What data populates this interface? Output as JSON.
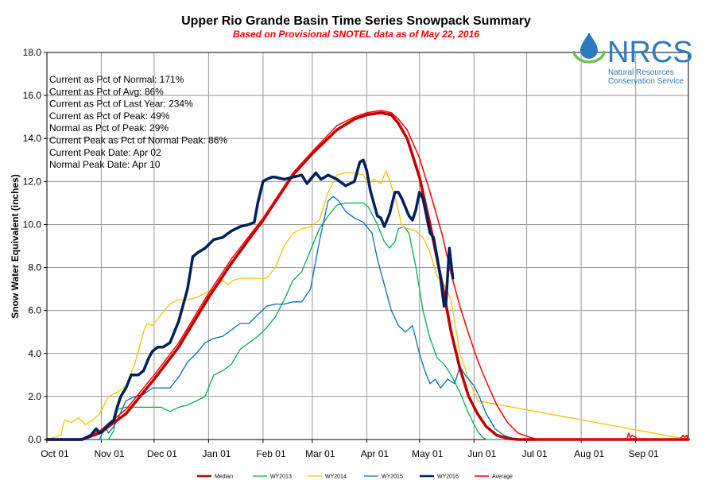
{
  "chart_data": {
    "type": "line",
    "title": "Upper Rio Grande Basin Time Series Snowpack Summary",
    "subtitle": "Based on Provisional SNOTEL data as of May 22, 2016",
    "xlabel": "",
    "ylabel": "Snow Water Equivalent (inches)",
    "ylim": [
      0,
      18
    ],
    "xlim": [
      0,
      365
    ],
    "grid": true,
    "legend_position": "bottom",
    "x_ticks": [
      {
        "label": "Oct 01",
        "day": 0
      },
      {
        "label": "Nov 01",
        "day": 31
      },
      {
        "label": "Dec 01",
        "day": 61
      },
      {
        "label": "Jan 01",
        "day": 92
      },
      {
        "label": "Feb 01",
        "day": 123
      },
      {
        "label": "Mar 01",
        "day": 151
      },
      {
        "label": "Apr 01",
        "day": 182
      },
      {
        "label": "May 01",
        "day": 212
      },
      {
        "label": "Jun 01",
        "day": 243
      },
      {
        "label": "Jul 01",
        "day": 273
      },
      {
        "label": "Aug 01",
        "day": 304
      },
      {
        "label": "Sep 01",
        "day": 335
      }
    ],
    "y_ticks": [
      "0.0",
      "2.0",
      "4.0",
      "6.0",
      "8.0",
      "10.0",
      "12.0",
      "14.0",
      "16.0",
      "18.0"
    ],
    "y_tick_values": [
      0,
      2,
      4,
      6,
      8,
      10,
      12,
      14,
      16,
      18
    ],
    "stats": [
      "Current  as Pct of Normal: 171%",
      "Current  as Pct of Avg: 86%",
      "Current  as Pct of Last Year: 234%",
      "Current  as Pct of Peak: 49%",
      "Normal as Pct of Peak: 29%",
      "Current  Peak as Pct of Normal  Peak: 86%",
      "Current  Peak Date: Apr 02",
      "Normal Peak Date: Apr 10"
    ],
    "series": [
      {
        "name": "Median",
        "color": "#c00000",
        "width": 3.5,
        "x": [
          0,
          20,
          30,
          45,
          61,
          75,
          92,
          105,
          123,
          140,
          151,
          165,
          175,
          182,
          190,
          196,
          200,
          205,
          212,
          218,
          225,
          230,
          235,
          240,
          245,
          250,
          256,
          262,
          268,
          275,
          365
        ],
        "y": [
          0,
          0,
          0.3,
          1.2,
          2.8,
          4.3,
          6.6,
          8.2,
          10.2,
          12.3,
          13.3,
          14.4,
          14.9,
          15.1,
          15.2,
          15.1,
          14.7,
          14.0,
          12.2,
          10.0,
          7.2,
          5.0,
          3.3,
          2.0,
          1.2,
          0.6,
          0.2,
          0.05,
          0,
          0,
          0
        ]
      },
      {
        "name": "WY2013",
        "color": "#00b050",
        "width": 1.3,
        "x": [
          0,
          35,
          38,
          40,
          45,
          50,
          55,
          65,
          70,
          75,
          80,
          90,
          95,
          100,
          105,
          110,
          115,
          120,
          125,
          130,
          135,
          140,
          145,
          150,
          155,
          160,
          165,
          170,
          175,
          180,
          183,
          188,
          192,
          195,
          198,
          200,
          203,
          206,
          210,
          214,
          218,
          222,
          226,
          230,
          235,
          240,
          245,
          248,
          250,
          365
        ],
        "y": [
          0,
          0,
          0.4,
          1.4,
          1.5,
          1.5,
          1.5,
          1.5,
          1.3,
          1.5,
          1.6,
          2.0,
          3.0,
          3.2,
          3.5,
          4.2,
          4.5,
          4.8,
          5.2,
          5.7,
          6.5,
          7.4,
          7.8,
          8.8,
          9.8,
          10.4,
          10.9,
          11.0,
          11.0,
          11.0,
          10.8,
          10.0,
          9.2,
          8.9,
          9.2,
          9.8,
          9.9,
          9.6,
          8.0,
          6.0,
          4.7,
          3.8,
          3.5,
          3.0,
          2.2,
          1.2,
          0.4,
          0.1,
          0,
          0
        ]
      },
      {
        "name": "WY2014",
        "color": "#ffc000",
        "width": 1.3,
        "x": [
          0,
          8,
          10,
          14,
          18,
          22,
          26,
          30,
          35,
          40,
          45,
          50,
          55,
          57,
          60,
          63,
          66,
          70,
          75,
          80,
          85,
          90,
          95,
          100,
          103,
          106,
          110,
          115,
          120,
          125,
          130,
          135,
          140,
          145,
          150,
          155,
          160,
          165,
          170,
          175,
          180,
          183,
          186,
          190,
          193,
          196,
          199,
          202,
          206,
          210,
          214,
          218,
          222,
          226,
          230,
          235,
          240,
          245,
          365
        ],
        "y": [
          0,
          0.2,
          0.9,
          0.8,
          1.0,
          0.7,
          0.9,
          1.2,
          2.0,
          2.2,
          2.5,
          3.5,
          5.0,
          5.4,
          5.3,
          5.6,
          5.9,
          6.3,
          6.5,
          6.5,
          6.6,
          6.8,
          7.0,
          7.4,
          7.2,
          7.4,
          7.5,
          7.5,
          7.5,
          7.5,
          8.0,
          9.0,
          9.6,
          9.8,
          9.9,
          10.2,
          11.5,
          12.3,
          12.4,
          12.4,
          12.3,
          11.9,
          12.1,
          11.9,
          12.5,
          11.8,
          11.0,
          9.9,
          9.8,
          9.7,
          9.4,
          8.7,
          7.6,
          7.2,
          6.5,
          4.0,
          2.8,
          1.8,
          0
        ]
      },
      {
        "name": "WY2015",
        "color": "#0070c0",
        "width": 1.3,
        "x": [
          0,
          30,
          33,
          35,
          38,
          40,
          45,
          50,
          55,
          60,
          65,
          70,
          75,
          80,
          85,
          90,
          95,
          100,
          105,
          110,
          115,
          120,
          125,
          130,
          135,
          140,
          145,
          150,
          155,
          160,
          163,
          166,
          170,
          175,
          180,
          185,
          188,
          192,
          196,
          200,
          204,
          208,
          212,
          215,
          218,
          221,
          224,
          228,
          232,
          235,
          238,
          240,
          243,
          246,
          250,
          255,
          260,
          265,
          270,
          365
        ],
        "y": [
          0,
          0,
          0.6,
          0.3,
          0.6,
          0.9,
          1.8,
          2.0,
          2.1,
          2.4,
          2.4,
          2.4,
          2.9,
          3.6,
          4.0,
          4.5,
          4.7,
          4.8,
          5.1,
          5.4,
          5.4,
          5.8,
          6.2,
          6.3,
          6.3,
          6.4,
          6.4,
          7.0,
          9.2,
          11.1,
          11.3,
          11.1,
          10.6,
          10.3,
          10.1,
          9.6,
          8.4,
          7.2,
          6.0,
          5.3,
          5.0,
          5.3,
          4.0,
          3.2,
          2.6,
          2.8,
          2.4,
          2.8,
          2.6,
          3.4,
          3.0,
          2.8,
          2.5,
          2.0,
          1.2,
          0.5,
          0.2,
          0.05,
          0,
          0
        ]
      },
      {
        "name": "WY2016",
        "color": "#002060",
        "width": 3.5,
        "x": [
          0,
          20,
          25,
          28,
          30,
          32,
          35,
          38,
          40,
          42,
          45,
          48,
          50,
          52,
          55,
          58,
          60,
          63,
          66,
          70,
          75,
          80,
          83,
          86,
          90,
          95,
          100,
          105,
          110,
          115,
          118,
          120,
          123,
          125,
          128,
          130,
          135,
          140,
          145,
          148,
          150,
          153,
          156,
          160,
          165,
          170,
          175,
          178,
          180,
          182,
          184,
          186,
          188,
          190,
          192,
          195,
          198,
          200,
          202,
          204,
          206,
          208,
          210,
          212,
          214,
          216,
          218,
          220,
          222,
          224,
          226,
          227,
          229,
          231
        ],
        "y": [
          0,
          0,
          0.2,
          0.5,
          0.3,
          0.4,
          0.7,
          0.9,
          1.5,
          2.0,
          2.4,
          3.0,
          3.0,
          3.0,
          3.2,
          3.8,
          4.1,
          4.3,
          4.3,
          4.5,
          5.5,
          7.0,
          8.5,
          8.7,
          8.9,
          9.3,
          9.4,
          9.7,
          9.9,
          10.0,
          10.1,
          11.0,
          12.0,
          12.1,
          12.2,
          12.2,
          12.1,
          12.2,
          12.3,
          11.9,
          12.1,
          12.4,
          12.1,
          12.3,
          12.1,
          11.8,
          12.0,
          12.9,
          13.0,
          12.5,
          11.6,
          11.0,
          10.4,
          10.3,
          9.9,
          10.5,
          11.5,
          11.5,
          11.2,
          10.8,
          10.4,
          10.2,
          10.7,
          11.5,
          11.2,
          10.4,
          9.6,
          9.4,
          8.5,
          7.5,
          6.2,
          6.3,
          8.9,
          7.5
        ]
      },
      {
        "name": "Average",
        "color": "#ff0000",
        "width": 1.5,
        "x": [
          0,
          20,
          30,
          45,
          61,
          75,
          92,
          105,
          123,
          140,
          151,
          165,
          175,
          182,
          190,
          196,
          200,
          205,
          212,
          218,
          225,
          230,
          235,
          240,
          245,
          250,
          256,
          262,
          268,
          275,
          280,
          330,
          331,
          332,
          333,
          335,
          336,
          340,
          360,
          362,
          363,
          364,
          365
        ],
        "y": [
          0,
          0,
          0.4,
          1.4,
          3.0,
          4.5,
          6.8,
          8.4,
          10.3,
          12.4,
          13.4,
          14.6,
          15.0,
          15.2,
          15.3,
          15.2,
          14.9,
          14.4,
          13.1,
          11.5,
          9.5,
          7.7,
          6.2,
          4.9,
          3.7,
          2.7,
          1.6,
          0.8,
          0.3,
          0.1,
          0,
          0,
          0.3,
          0.1,
          0.2,
          0.1,
          0,
          0,
          0,
          0.2,
          0.1,
          0.2,
          0
        ]
      }
    ]
  }
}
